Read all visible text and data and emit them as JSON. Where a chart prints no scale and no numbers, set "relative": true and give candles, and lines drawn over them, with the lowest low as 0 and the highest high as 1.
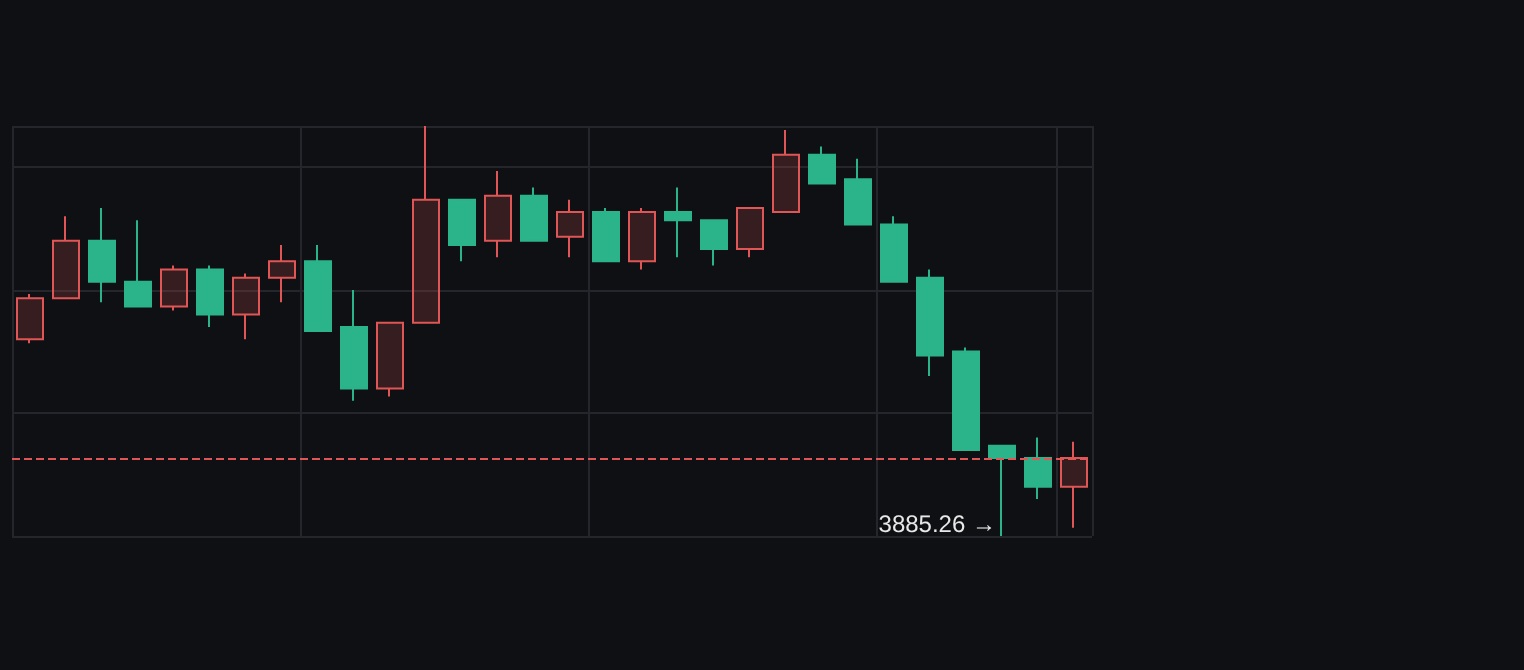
{
  "chart_data": {
    "type": "candlestick",
    "relative": true,
    "grid": true,
    "categories": [
      null,
      null,
      null,
      null,
      null,
      null,
      null,
      null,
      null,
      null,
      null,
      null,
      null,
      null,
      null,
      null,
      null,
      null,
      null,
      null,
      null,
      null,
      null,
      null,
      null,
      null,
      null,
      null,
      null,
      null
    ],
    "ohlc": [
      [
        0.48,
        0.59,
        0.47,
        0.58
      ],
      [
        0.58,
        0.78,
        0.58,
        0.72
      ],
      [
        0.72,
        0.8,
        0.57,
        0.62
      ],
      [
        0.62,
        0.77,
        0.56,
        0.56
      ],
      [
        0.56,
        0.66,
        0.55,
        0.65
      ],
      [
        0.65,
        0.66,
        0.51,
        0.54
      ],
      [
        0.54,
        0.64,
        0.48,
        0.63
      ],
      [
        0.63,
        0.71,
        0.57,
        0.67
      ],
      [
        0.67,
        0.71,
        0.5,
        0.5
      ],
      [
        0.51,
        0.6,
        0.33,
        0.36
      ],
      [
        0.36,
        0.52,
        0.34,
        0.52
      ],
      [
        0.52,
        1,
        0.52,
        0.82
      ],
      [
        0.82,
        0.82,
        0.67,
        0.71
      ],
      [
        0.72,
        0.89,
        0.68,
        0.83
      ],
      [
        0.83,
        0.85,
        0.72,
        0.72
      ],
      [
        0.73,
        0.82,
        0.68,
        0.79
      ],
      [
        0.79,
        0.8,
        0.67,
        0.67
      ],
      [
        0.67,
        0.8,
        0.65,
        0.79
      ],
      [
        0.79,
        0.85,
        0.68,
        0.77
      ],
      [
        0.77,
        0.77,
        0.66,
        0.7
      ],
      [
        0.7,
        0.8,
        0.68,
        0.8
      ],
      [
        0.79,
        0.99,
        0.79,
        0.93
      ],
      [
        0.93,
        0.95,
        0.86,
        0.86
      ],
      [
        0.87,
        0.92,
        0.76,
        0.76
      ],
      [
        0.76,
        0.78,
        0.62,
        0.62
      ],
      [
        0.63,
        0.65,
        0.39,
        0.44
      ],
      [
        0.45,
        0.46,
        0.21,
        0.21
      ],
      [
        0.22,
        0.22,
        0,
        0.19
      ],
      [
        0.19,
        0.24,
        0.09,
        0.12
      ],
      [
        0.12,
        0.23,
        0.02,
        0.19
      ]
    ],
    "colors": [
      "#e05656",
      "#e05656",
      "#2bb38a",
      "#2bb38a",
      "#e05656",
      "#2bb38a",
      "#e05656",
      "#e05656",
      "#2bb38a",
      "#2bb38a",
      "#e05656",
      "#e05656",
      "#2bb38a",
      "#e05656",
      "#2bb38a",
      "#e05656",
      "#2bb38a",
      "#e05656",
      "#2bb38a",
      "#2bb38a",
      "#e05656",
      "#e05656",
      "#2bb38a",
      "#2bb38a",
      "#2bb38a",
      "#2bb38a",
      "#2bb38a",
      "#2bb38a",
      "#2bb38a",
      "#e05656"
    ],
    "ref_lines": [
      {
        "axis": "y",
        "value": 0.19,
        "color": "#e05656",
        "line_style": "dashed"
      }
    ],
    "annotations": [
      "3885.26 →"
    ]
  }
}
